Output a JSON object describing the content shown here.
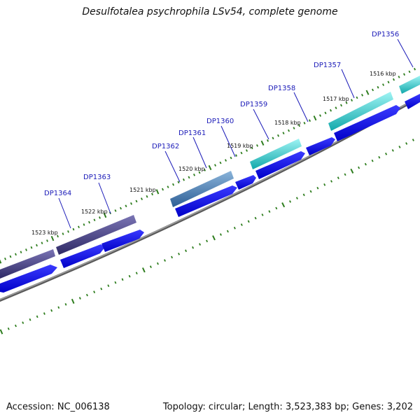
{
  "title": "Desulfotalea psychrophila LSv54, complete genome",
  "footer": {
    "accession": "Accession: NC_006138",
    "summary": "Topology: circular; Length: 3,523,383 bp; Genes: 3,202"
  },
  "colors": {
    "cds_forward": "#0a00f0",
    "backbone": "#7f7f7f",
    "tick": "#2e7d1e",
    "label_line": "#1a1ab8",
    "label_text": "#1a1ab8"
  },
  "kbp_markers": [
    "1523 kbp",
    "1522 kbp",
    "1521 kbp",
    "1520 kbp",
    "1519 kbp",
    "1518 kbp",
    "1517 kbp",
    "1516 kbp"
  ],
  "genes": [
    {
      "name": "DP1364",
      "color": "#3f3a7e"
    },
    {
      "name": "DP1363",
      "color": "#3f3a7e"
    },
    {
      "name": "DP1362",
      "color": "#4a7cb0"
    },
    {
      "name": "DP1361",
      "color": "#4a7cb0"
    },
    {
      "name": "DP1360",
      "color": "#0a00f0"
    },
    {
      "name": "DP1359",
      "color": "#1fc9cc"
    },
    {
      "name": "DP1358",
      "color": "#1fc9cc"
    },
    {
      "name": "DP1357",
      "color": "#1fc9cc"
    },
    {
      "name": "DP1356",
      "color": "#1fc9cc"
    }
  ]
}
